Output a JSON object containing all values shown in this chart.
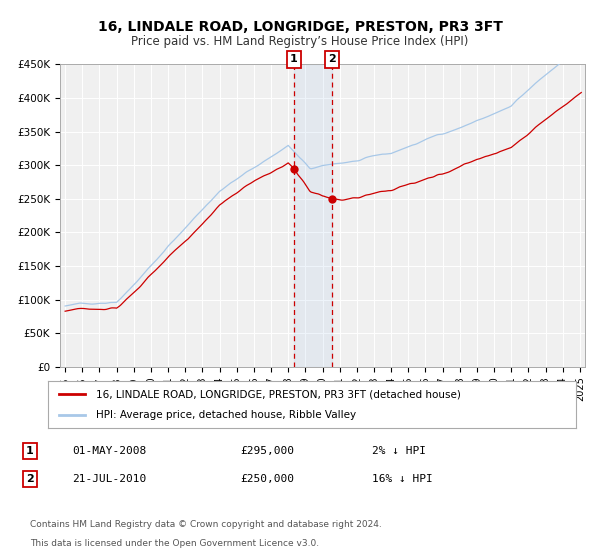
{
  "title": "16, LINDALE ROAD, LONGRIDGE, PRESTON, PR3 3FT",
  "subtitle": "Price paid vs. HM Land Registry’s House Price Index (HPI)",
  "ylim": [
    0,
    450000
  ],
  "yticks": [
    0,
    50000,
    100000,
    150000,
    200000,
    250000,
    300000,
    350000,
    400000,
    450000
  ],
  "ytick_labels": [
    "£0",
    "£50K",
    "£100K",
    "£150K",
    "£200K",
    "£250K",
    "£300K",
    "£350K",
    "£400K",
    "£450K"
  ],
  "xtick_years": [
    1995,
    1996,
    1997,
    1998,
    1999,
    2000,
    2001,
    2002,
    2003,
    2004,
    2005,
    2006,
    2007,
    2008,
    2009,
    2010,
    2011,
    2012,
    2013,
    2014,
    2015,
    2016,
    2017,
    2018,
    2019,
    2020,
    2021,
    2022,
    2023,
    2024,
    2025
  ],
  "hpi_color": "#a8c8e8",
  "property_color": "#cc0000",
  "background_color": "#f0f0f0",
  "grid_color": "#ffffff",
  "sale1_year": 2008.33,
  "sale1_price": 295000,
  "sale2_year": 2010.54,
  "sale2_price": 250000,
  "legend_line1": "16, LINDALE ROAD, LONGRIDGE, PRESTON, PR3 3FT (detached house)",
  "legend_line2": "HPI: Average price, detached house, Ribble Valley",
  "sale1_date": "01-MAY-2008",
  "sale1_price_str": "£295,000",
  "sale1_diff": "2% ↓ HPI",
  "sale2_date": "21-JUL-2010",
  "sale2_price_str": "£250,000",
  "sale2_diff": "16% ↓ HPI",
  "footer1": "Contains HM Land Registry data © Crown copyright and database right 2024.",
  "footer2": "This data is licensed under the Open Government Licence v3.0."
}
